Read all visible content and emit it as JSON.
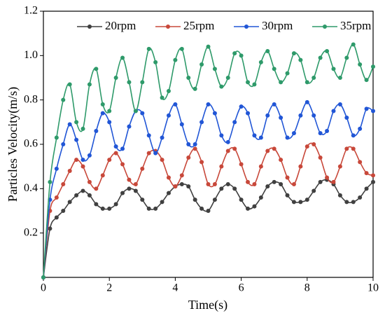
{
  "chart_data": {
    "type": "line",
    "x_label": "Time(s)",
    "y_label": "Particles Velocity(m/s)",
    "x": [
      0,
      0.2,
      0.4,
      0.6,
      0.8,
      1,
      1.2,
      1.4,
      1.6,
      1.8,
      2,
      2.2,
      2.4,
      2.6,
      2.8,
      3,
      3.2,
      3.4,
      3.6,
      3.8,
      4,
      4.2,
      4.4,
      4.6,
      4.8,
      5,
      5.2,
      5.4,
      5.6,
      5.8,
      6,
      6.2,
      6.4,
      6.6,
      6.8,
      7,
      7.2,
      7.4,
      7.6,
      7.8,
      8,
      8.2,
      8.4,
      8.6,
      8.8,
      9,
      9.2,
      9.4,
      9.6,
      9.8,
      10
    ],
    "series": [
      {
        "name": "20rpm",
        "color": "#404040",
        "values": [
          0,
          0.22,
          0.27,
          0.3,
          0.34,
          0.37,
          0.39,
          0.37,
          0.33,
          0.31,
          0.31,
          0.33,
          0.38,
          0.4,
          0.39,
          0.35,
          0.31,
          0.31,
          0.34,
          0.38,
          0.41,
          0.42,
          0.41,
          0.35,
          0.31,
          0.3,
          0.35,
          0.4,
          0.42,
          0.4,
          0.35,
          0.31,
          0.32,
          0.36,
          0.41,
          0.43,
          0.42,
          0.37,
          0.34,
          0.34,
          0.35,
          0.39,
          0.43,
          0.44,
          0.42,
          0.37,
          0.34,
          0.34,
          0.36,
          0.4,
          0.43
        ]
      },
      {
        "name": "25rpm",
        "color": "#c8483a",
        "values": [
          0,
          0.3,
          0.36,
          0.42,
          0.48,
          0.53,
          0.5,
          0.43,
          0.4,
          0.46,
          0.53,
          0.56,
          0.51,
          0.44,
          0.42,
          0.49,
          0.56,
          0.57,
          0.53,
          0.45,
          0.41,
          0.46,
          0.54,
          0.58,
          0.52,
          0.42,
          0.42,
          0.5,
          0.57,
          0.58,
          0.51,
          0.43,
          0.42,
          0.5,
          0.57,
          0.58,
          0.53,
          0.45,
          0.42,
          0.5,
          0.59,
          0.6,
          0.54,
          0.45,
          0.43,
          0.5,
          0.58,
          0.58,
          0.52,
          0.47,
          0.46
        ]
      },
      {
        "name": "30rpm",
        "color": "#2156d6",
        "values": [
          0,
          0.35,
          0.49,
          0.6,
          0.69,
          0.62,
          0.53,
          0.55,
          0.66,
          0.74,
          0.7,
          0.59,
          0.58,
          0.68,
          0.75,
          0.74,
          0.64,
          0.56,
          0.63,
          0.73,
          0.78,
          0.69,
          0.6,
          0.6,
          0.7,
          0.78,
          0.74,
          0.64,
          0.61,
          0.7,
          0.77,
          0.74,
          0.64,
          0.63,
          0.73,
          0.78,
          0.72,
          0.63,
          0.65,
          0.73,
          0.79,
          0.73,
          0.65,
          0.66,
          0.75,
          0.78,
          0.72,
          0.64,
          0.67,
          0.76,
          0.75
        ]
      },
      {
        "name": "35rpm",
        "color": "#2e9a6a",
        "values": [
          0,
          0.43,
          0.63,
          0.8,
          0.87,
          0.7,
          0.67,
          0.87,
          0.94,
          0.78,
          0.75,
          0.9,
          0.99,
          0.88,
          0.75,
          0.88,
          1.03,
          0.97,
          0.81,
          0.84,
          0.98,
          1.03,
          0.9,
          0.85,
          0.96,
          1.04,
          0.94,
          0.86,
          0.9,
          1.01,
          1,
          0.88,
          0.87,
          0.97,
          1.02,
          0.94,
          0.88,
          0.92,
          1.01,
          0.98,
          0.88,
          0.9,
          0.99,
          1.02,
          0.94,
          0.9,
          0.99,
          1.05,
          0.96,
          0.89,
          0.95
        ]
      }
    ],
    "xlim": [
      0,
      10
    ],
    "xticks": [
      0,
      2,
      4,
      6,
      8,
      10
    ],
    "ylim": [
      0,
      1.2
    ],
    "yticks": [
      {
        "value": 0.2,
        "label": "0.2"
      },
      {
        "value": 0.4,
        "label": "0.4"
      },
      {
        "value": 0.6,
        "label": "0.6"
      },
      {
        "value": 0.8,
        "label": "0.8"
      },
      {
        "value": 1.0,
        "label": "1.0"
      },
      {
        "value": 1.2,
        "label": "1.2"
      }
    ],
    "legend": "top",
    "grid": false
  }
}
